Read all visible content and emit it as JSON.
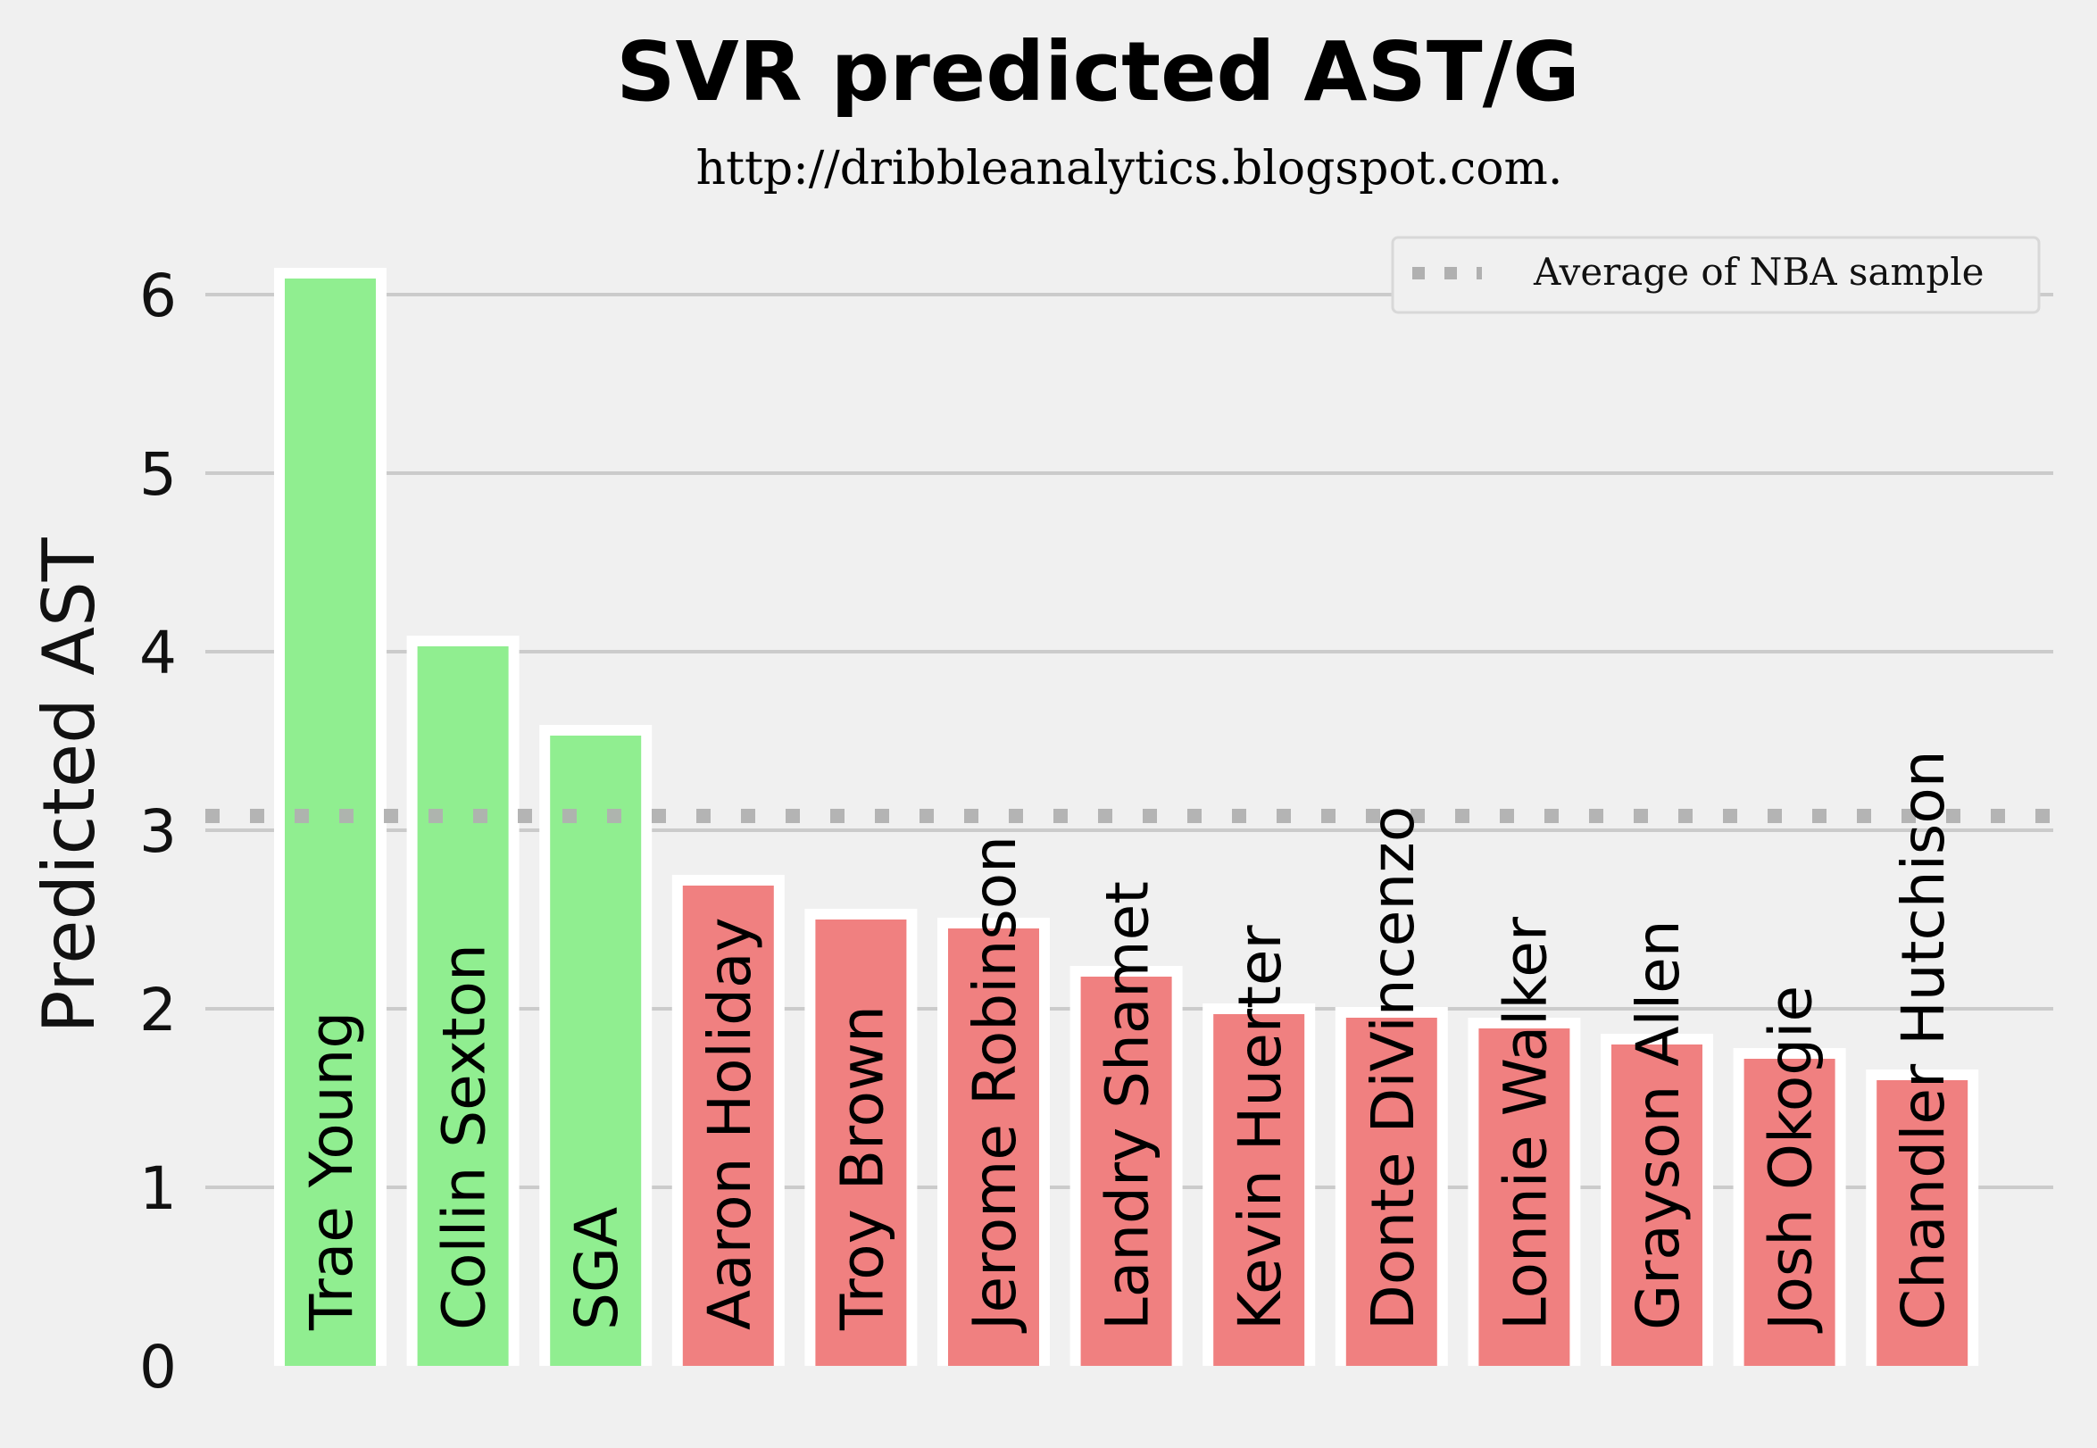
{
  "chart_data": {
    "type": "bar",
    "title": "SVR predicted AST/G",
    "subtitle": "http://dribbleanalytics.blogspot.com.",
    "ylabel": "Predicted AST",
    "ylim": [
      0,
      6.3
    ],
    "yticks": [
      0,
      1,
      2,
      3,
      4,
      5,
      6
    ],
    "grid": true,
    "categories": [
      "Trae Young",
      "Collin Sexton",
      "SGA",
      "Aaron Holiday",
      "Troy Brown",
      "Jerome Robinson",
      "Landry Shamet",
      "Kevin Huerter",
      "Donte DiVincenzo",
      "Lonnie Walker",
      "Grayson Allen",
      "Josh Okogie",
      "Chandler Hutchison"
    ],
    "values": [
      6.09,
      4.03,
      3.53,
      2.69,
      2.5,
      2.45,
      2.18,
      1.97,
      1.95,
      1.89,
      1.8,
      1.72,
      1.6
    ],
    "bar_colors": [
      "#90ee90",
      "#90ee90",
      "#90ee90",
      "#f08080",
      "#f08080",
      "#f08080",
      "#f08080",
      "#f08080",
      "#f08080",
      "#f08080",
      "#f08080",
      "#f08080",
      "#f08080"
    ],
    "average_line": {
      "value": 3.08,
      "label": "Average of NBA sample",
      "color": "#b0b0b0",
      "style": "dotted"
    },
    "legend_position": "top-right"
  }
}
